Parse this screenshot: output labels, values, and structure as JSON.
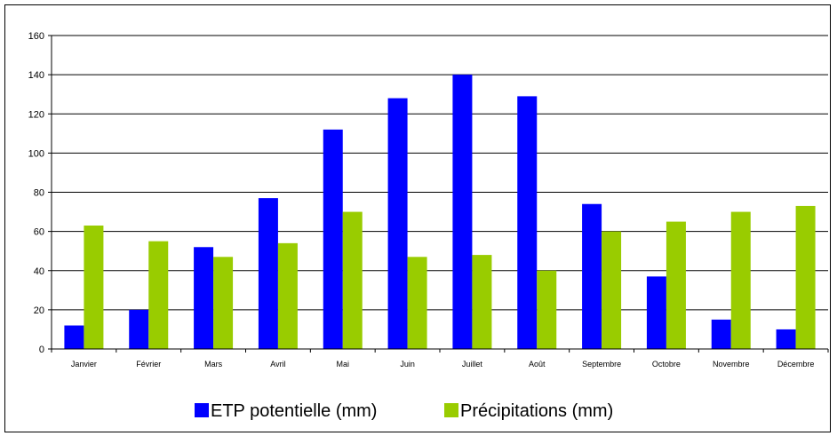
{
  "chart_data": {
    "type": "bar",
    "title": "",
    "xlabel": "",
    "ylabel": "",
    "categories": [
      "Janvier",
      "Février",
      "Mars",
      "Avril",
      "Mai",
      "Juin",
      "Juillet",
      "Août",
      "Septembre",
      "Octobre",
      "Novembre",
      "Décembre"
    ],
    "series": [
      {
        "name": "ETP potentielle (mm)",
        "color": "#0000ff",
        "values": [
          12,
          20,
          52,
          77,
          112,
          128,
          140,
          129,
          74,
          37,
          15,
          10
        ]
      },
      {
        "name": "Précipitations (mm)",
        "color": "#99cc00",
        "values": [
          63,
          55,
          47,
          54,
          70,
          47,
          48,
          40,
          60,
          65,
          70,
          73
        ]
      }
    ],
    "ylim": [
      0,
      160
    ],
    "yticks": [
      0,
      20,
      40,
      60,
      80,
      100,
      120,
      140,
      160
    ],
    "grid": true,
    "legend_position": "bottom"
  }
}
